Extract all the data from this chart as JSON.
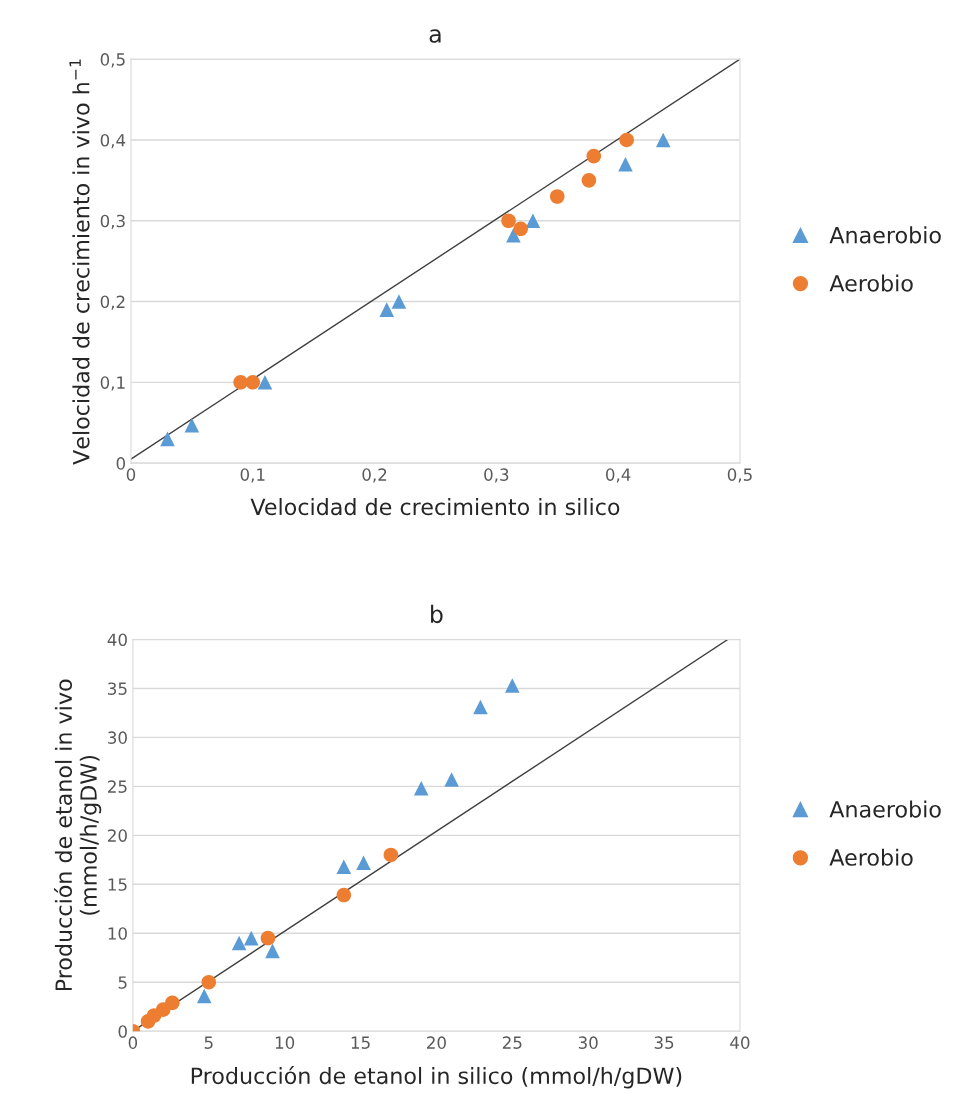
{
  "chart_data": [
    {
      "type": "scatter",
      "title": "a",
      "xlabel": "Velocidad de crecimiento in silico",
      "ylabel": "Velocidad de crecimiento in vivo h$^{−1}$",
      "legend": "right",
      "grid": "y",
      "xlim": [
        0,
        0.5
      ],
      "ylim": [
        0,
        0.5
      ],
      "xticks": [
        0,
        {
          "value": 0.1,
          "label": "0,1"
        },
        {
          "value": 0.2,
          "label": "0,2"
        },
        {
          "value": 0.3,
          "label": "0,3"
        },
        {
          "value": 0.4,
          "label": "0,4"
        },
        {
          "value": 0.5,
          "label": "0,5"
        }
      ],
      "yticks": [
        0,
        {
          "value": 0.1,
          "label": "0,1"
        },
        {
          "value": 0.2,
          "label": "0,2"
        },
        {
          "value": 0.3,
          "label": "0,3"
        },
        {
          "value": 0.4,
          "label": "0,4"
        },
        {
          "value": 0.5,
          "label": "0,5"
        }
      ],
      "series": [
        {
          "name": "Anaerobio",
          "color": "#5b9bd5",
          "marker": "triangle",
          "x": [
            0.03,
            0.05,
            0.11,
            0.21,
            0.22,
            0.314,
            0.33,
            0.406,
            0.437
          ],
          "values": [
            0.03,
            0.047,
            0.1,
            0.19,
            0.2,
            0.282,
            0.3,
            0.37,
            0.4
          ]
        },
        {
          "name": "Aerobio",
          "color": "#ed7d31",
          "marker": "circle",
          "x": [
            0.09,
            0.1,
            0.31,
            0.32,
            0.35,
            0.376,
            0.38,
            0.407
          ],
          "values": [
            0.1,
            0.1,
            0.3,
            0.29,
            0.33,
            0.35,
            0.38,
            0.4
          ]
        },
        {
          "type": "line",
          "color": "#404040",
          "x": [
            0,
            0.5
          ],
          "values": [
            0.005,
            0.5
          ]
        }
      ]
    },
    {
      "type": "scatter",
      "title": "b",
      "xlabel": "Producción de etanol in silico (mmol/h/gDW)",
      "ylabel": "Producción de etanol in vivo\n(mmol/h/gDW)",
      "legend": "right",
      "grid": "y",
      "xlim": [
        0,
        40
      ],
      "ylim": [
        0,
        40
      ],
      "xticks": [
        0,
        5,
        10,
        15,
        20,
        25,
        30,
        35,
        40
      ],
      "yticks": [
        0,
        5,
        10,
        15,
        20,
        25,
        30,
        35,
        40
      ],
      "series": [
        {
          "name": "Anaerobio",
          "color": "#5b9bd5",
          "marker": "triangle",
          "x": [
            4.7,
            7,
            7.8,
            9.2,
            13.9,
            15.2,
            19,
            21,
            22.9,
            25
          ],
          "values": [
            3.6,
            9,
            9.5,
            8.2,
            16.8,
            17.2,
            24.8,
            25.7,
            33.1,
            35.3
          ]
        },
        {
          "name": "Aerobio",
          "color": "#ed7d31",
          "marker": "circle",
          "x": [
            0,
            1,
            1.4,
            2,
            2.6,
            5,
            8.9,
            13.9,
            17
          ],
          "values": [
            0,
            1,
            1.6,
            2.2,
            2.9,
            5,
            9.5,
            13.9,
            18
          ]
        },
        {
          "type": "line",
          "color": "#404040",
          "x": [
            0,
            39.2
          ],
          "values": [
            0,
            40
          ]
        }
      ]
    }
  ]
}
